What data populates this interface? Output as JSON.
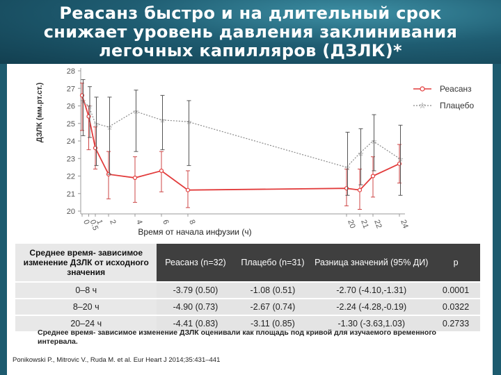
{
  "title_lines": [
    "Реасанз быстро и на длительный срок",
    "снижает уровень давления заклинивания",
    "легочных капилляров (ДЗЛК)*"
  ],
  "chart_data": {
    "type": "line",
    "ylabel": "ДЗЛК (мм.рт.ст.)",
    "xlabel": "Время от начала инфузии (ч)",
    "ylim": [
      20,
      28
    ],
    "yticks": [
      20,
      21,
      22,
      23,
      24,
      25,
      26,
      27,
      28
    ],
    "xticks": [
      "0",
      "0.5",
      "1",
      "2",
      "4",
      "6",
      "8",
      "20",
      "21",
      "22",
      "24"
    ],
    "series": [
      {
        "name": "Реасанз",
        "color": "#e23b3b",
        "marker": "circle",
        "x": [
          0,
          0.5,
          1,
          2,
          4,
          6,
          8,
          20,
          21,
          22,
          24
        ],
        "y": [
          26.6,
          25.4,
          23.6,
          22.1,
          21.9,
          22.3,
          21.2,
          21.3,
          21.2,
          22.0,
          22.7
        ],
        "err_low": [
          24.6,
          23.5,
          22.4,
          20.7,
          20.5,
          21.1,
          20.2,
          20.3,
          20.1,
          20.8,
          21.6
        ],
        "err_high": [
          27.3,
          26.0,
          24.8,
          23.4,
          23.1,
          23.4,
          22.3,
          22.4,
          22.4,
          23.1,
          23.8
        ]
      },
      {
        "name": "Плацебо",
        "color": "#888888",
        "marker": "star",
        "x": [
          0,
          0.5,
          1,
          2,
          4,
          6,
          8,
          20,
          21,
          22,
          24
        ],
        "y": [
          26.3,
          26.0,
          25.0,
          24.8,
          25.7,
          25.2,
          25.1,
          22.5,
          23.3,
          24.0,
          23.0
        ],
        "err_low": [
          24.3,
          24.2,
          22.6,
          22.1,
          23.4,
          23.5,
          22.6,
          20.9,
          21.5,
          22.3,
          20.9
        ],
        "err_high": [
          27.5,
          27.1,
          26.5,
          26.5,
          26.9,
          26.6,
          26.3,
          24.5,
          24.7,
          25.5,
          24.9
        ]
      }
    ],
    "legend_position": "top-right"
  },
  "table": {
    "headers": [
      "Среднее время- зависимое изменение ДЗЛК от исходного значения",
      "Реасанз (n=32)",
      "Плацебо (n=31)",
      "Разница значений (95% ДИ)",
      "p"
    ],
    "rows": [
      [
        "0–8 ч",
        "-3.79 (0.50)",
        "-1.08 (0.51)",
        "-2.70 (-4.10,-1.31)",
        "0.0001"
      ],
      [
        "8–20 ч",
        "-4.90 (0.73)",
        "-2.67 (0.74)",
        "-2.24 (-4.28,-0.19)",
        "0.0322"
      ],
      [
        "20–24 ч",
        "-4.41 (0.83)",
        "-3.11 (0.85)",
        "-1.30 (-3.63,1.03)",
        "0.2733"
      ]
    ]
  },
  "note": "Среднее время- зависимое изменение ДЗЛК оценивали как площадь под кривой для изучаемого временного интервала.",
  "reference": "Ponikowski P., Mitrovic V., Ruda M. et al. Eur Heart J 2014;35:431–441"
}
